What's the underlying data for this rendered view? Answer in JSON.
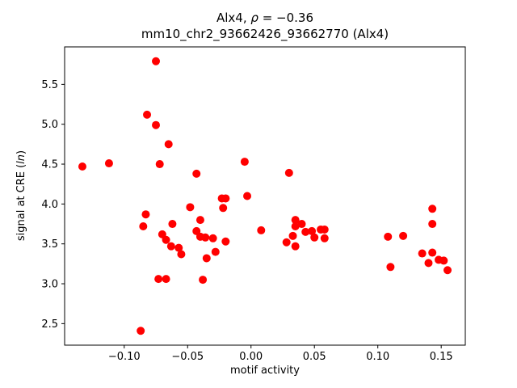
{
  "title": {
    "line1_prefix": "Alx4, ",
    "line1_rho": "ρ",
    "line1_rest": " = −0.36",
    "line2": "mm10_chr2_93662426_93662770 (Alx4)"
  },
  "axes": {
    "xlabel": "motif activity",
    "ylabel_prefix": "signal at CRE (",
    "ylabel_italic": "ln",
    "ylabel_suffix": ")"
  },
  "chart_data": {
    "type": "scatter",
    "title": "Alx4, ρ = −0.36",
    "subtitle": "mm10_chr2_93662426_93662770 (Alx4)",
    "xlabel": "motif activity",
    "ylabel": "signal at CRE (ln)",
    "marker_color": "#ff0000",
    "marker_radius": 5,
    "grid": false,
    "legend": "none",
    "xlim": [
      -0.147,
      0.169
    ],
    "ylim": [
      2.23,
      5.97
    ],
    "xticks": [
      -0.1,
      -0.05,
      0.0,
      0.05,
      0.1,
      0.15
    ],
    "yticks": [
      2.5,
      3.0,
      3.5,
      4.0,
      4.5,
      5.0,
      5.5
    ],
    "points": [
      {
        "x": -0.133,
        "y": 4.47
      },
      {
        "x": -0.112,
        "y": 4.51
      },
      {
        "x": -0.087,
        "y": 2.41
      },
      {
        "x": -0.085,
        "y": 3.72
      },
      {
        "x": -0.083,
        "y": 3.87
      },
      {
        "x": -0.082,
        "y": 5.12
      },
      {
        "x": -0.075,
        "y": 5.79
      },
      {
        "x": -0.075,
        "y": 4.99
      },
      {
        "x": -0.073,
        "y": 3.06
      },
      {
        "x": -0.072,
        "y": 4.5
      },
      {
        "x": -0.07,
        "y": 3.62
      },
      {
        "x": -0.067,
        "y": 3.06
      },
      {
        "x": -0.067,
        "y": 3.55
      },
      {
        "x": -0.065,
        "y": 4.75
      },
      {
        "x": -0.063,
        "y": 3.47
      },
      {
        "x": -0.062,
        "y": 3.75
      },
      {
        "x": -0.057,
        "y": 3.45
      },
      {
        "x": -0.055,
        "y": 3.37
      },
      {
        "x": -0.048,
        "y": 3.96
      },
      {
        "x": -0.043,
        "y": 4.38
      },
      {
        "x": -0.043,
        "y": 3.66
      },
      {
        "x": -0.04,
        "y": 3.8
      },
      {
        "x": -0.04,
        "y": 3.59
      },
      {
        "x": -0.038,
        "y": 3.05
      },
      {
        "x": -0.036,
        "y": 3.58
      },
      {
        "x": -0.035,
        "y": 3.32
      },
      {
        "x": -0.03,
        "y": 3.57
      },
      {
        "x": -0.028,
        "y": 3.4
      },
      {
        "x": -0.023,
        "y": 4.07
      },
      {
        "x": -0.022,
        "y": 3.95
      },
      {
        "x": -0.02,
        "y": 4.07
      },
      {
        "x": -0.02,
        "y": 3.53
      },
      {
        "x": -0.005,
        "y": 4.53
      },
      {
        "x": -0.003,
        "y": 4.1
      },
      {
        "x": 0.008,
        "y": 3.67
      },
      {
        "x": 0.028,
        "y": 3.52
      },
      {
        "x": 0.03,
        "y": 4.39
      },
      {
        "x": 0.033,
        "y": 3.6
      },
      {
        "x": 0.035,
        "y": 3.8
      },
      {
        "x": 0.035,
        "y": 3.72
      },
      {
        "x": 0.035,
        "y": 3.47
      },
      {
        "x": 0.04,
        "y": 3.75
      },
      {
        "x": 0.043,
        "y": 3.65
      },
      {
        "x": 0.048,
        "y": 3.66
      },
      {
        "x": 0.05,
        "y": 3.58
      },
      {
        "x": 0.055,
        "y": 3.68
      },
      {
        "x": 0.058,
        "y": 3.57
      },
      {
        "x": 0.058,
        "y": 3.68
      },
      {
        "x": 0.108,
        "y": 3.59
      },
      {
        "x": 0.11,
        "y": 3.21
      },
      {
        "x": 0.12,
        "y": 3.6
      },
      {
        "x": 0.135,
        "y": 3.38
      },
      {
        "x": 0.14,
        "y": 3.26
      },
      {
        "x": 0.143,
        "y": 3.94
      },
      {
        "x": 0.143,
        "y": 3.75
      },
      {
        "x": 0.143,
        "y": 3.39
      },
      {
        "x": 0.148,
        "y": 3.3
      },
      {
        "x": 0.152,
        "y": 3.29
      },
      {
        "x": 0.155,
        "y": 3.17
      }
    ]
  }
}
